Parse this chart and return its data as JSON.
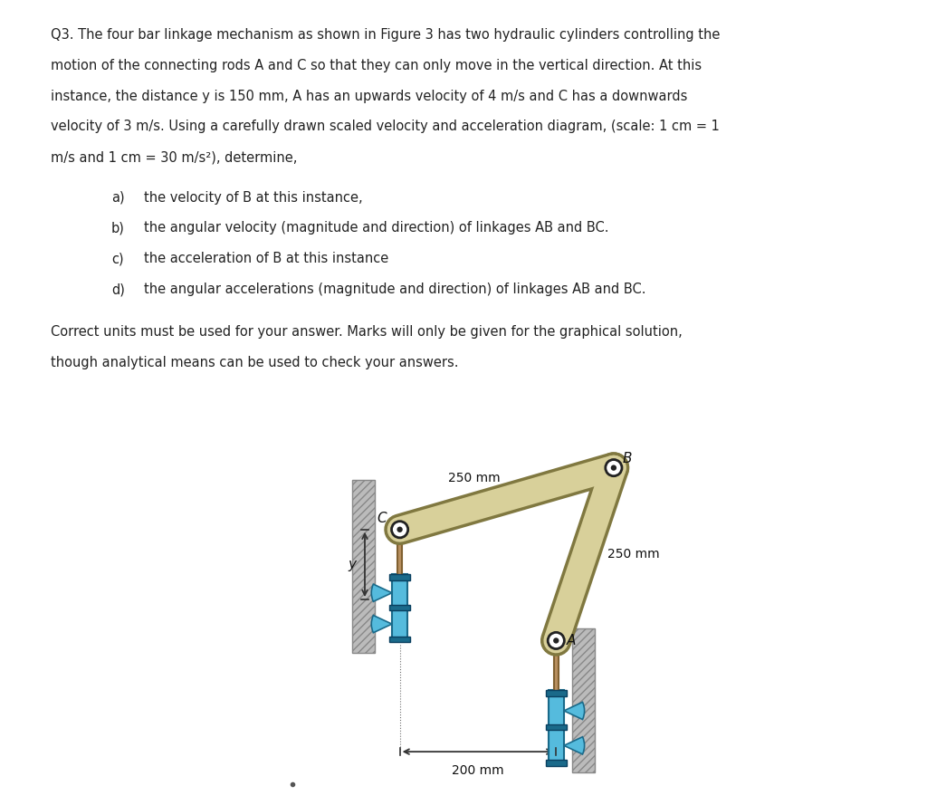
{
  "bg_color": "#ffffff",
  "text_color": "#222222",
  "question_lines": [
    "Q3. The four bar linkage mechanism as shown in Figure 3 has two hydraulic cylinders controlling the",
    "motion of the connecting rods A and C so that they can only move in the vertical direction. At this",
    "instance, the distance y is 150 mm, A has an upwards velocity of 4 m/s and C has a downwards",
    "velocity of 3 m/s. Using a carefully drawn scaled velocity and acceleration diagram, (scale: 1 cm = 1",
    "m/s and 1 cm = 30 m/s²), determine,"
  ],
  "items": [
    [
      "a)",
      "the velocity of B at this instance,"
    ],
    [
      "b)",
      "the angular velocity (magnitude and direction) of linkages AB and BC."
    ],
    [
      "c)",
      "the acceleration of B at this instance"
    ],
    [
      "d)",
      "the angular accelerations (magnitude and direction) of linkages AB and BC."
    ]
  ],
  "footer_lines": [
    "Correct units must be used for your answer. Marks will only be given for the graphical solution,",
    "though analytical means can be used to check your answers."
  ],
  "link_color": "#d8d09a",
  "link_edge_color": "#807840",
  "cylinder_color": "#55bbdd",
  "cylinder_dark": "#1a6a8a",
  "cylinder_mid": "#3399bb",
  "rod_color": "#b89060",
  "rod_dark": "#806030",
  "wall_color": "#bbbbbb",
  "wall_hatch_color": "#888888",
  "pin_fill": "#ffffff",
  "pin_edge": "#222222",
  "dim_color": "#333333",
  "label_color": "#111111"
}
